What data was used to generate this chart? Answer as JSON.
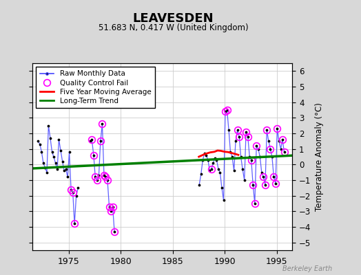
{
  "title": "LEAVESDEN",
  "subtitle": "51.683 N, 0.417 W (United Kingdom)",
  "ylabel": "Temperature Anomaly (°C)",
  "ylim": [
    -5.5,
    6.5
  ],
  "xlim": [
    1971.5,
    1996.5
  ],
  "xticks": [
    1975,
    1980,
    1985,
    1990,
    1995
  ],
  "yticks": [
    -5,
    -4,
    -3,
    -2,
    -1,
    0,
    1,
    2,
    3,
    4,
    5,
    6
  ],
  "background_color": "#d8d8d8",
  "plot_bg_color": "#ffffff",
  "watermark": "Berkeley Earth",
  "segments": [
    {
      "times": [
        1972.04,
        1972.21,
        1972.38,
        1972.54,
        1972.71,
        1972.88,
        1973.04,
        1973.21,
        1973.38,
        1973.54,
        1973.71,
        1973.88,
        1974.04,
        1974.21,
        1974.38,
        1974.54,
        1974.71,
        1974.88,
        1975.04,
        1975.21,
        1975.38,
        1975.54,
        1975.71,
        1975.88
      ],
      "values": [
        1.5,
        1.3,
        0.8,
        0.1,
        -0.2,
        -0.5,
        2.5,
        1.7,
        0.8,
        0.5,
        0.1,
        -0.3,
        1.6,
        0.9,
        0.2,
        -0.4,
        -0.3,
        -0.8,
        0.8,
        -1.6,
        -1.8,
        -3.8,
        -2.0,
        -1.5
      ]
    },
    {
      "times": [
        1977.04,
        1977.21,
        1977.38,
        1977.54,
        1977.71,
        1977.88,
        1978.04,
        1978.21,
        1978.38,
        1978.54,
        1978.71,
        1978.88,
        1979.04,
        1979.21,
        1979.38
      ],
      "values": [
        1.5,
        1.6,
        0.6,
        -0.8,
        -1.0,
        -0.7,
        1.5,
        2.6,
        -0.7,
        -0.8,
        -1.0,
        -2.7,
        -3.0,
        -2.7,
        -4.3
      ]
    },
    {
      "times": [
        1987.54,
        1987.71,
        1987.88,
        1988.04,
        1988.21,
        1988.38,
        1988.54,
        1988.71,
        1988.88,
        1989.04,
        1989.21,
        1989.38,
        1989.54,
        1989.71,
        1989.88,
        1990.04,
        1990.21,
        1990.38,
        1990.54,
        1990.71,
        1990.88,
        1991.04,
        1991.21,
        1991.38,
        1991.54,
        1991.71,
        1991.88,
        1992.04,
        1992.21,
        1992.38,
        1992.54,
        1992.71,
        1992.88,
        1993.04,
        1993.21,
        1993.38,
        1993.54,
        1993.71,
        1993.88,
        1994.04,
        1994.21,
        1994.38,
        1994.54,
        1994.71,
        1994.88,
        1995.04,
        1995.21,
        1995.38,
        1995.54,
        1995.71
      ],
      "values": [
        -1.3,
        -0.6,
        0.3,
        0.7,
        0.6,
        0.3,
        -0.4,
        -0.3,
        0.1,
        0.4,
        0.3,
        -0.3,
        -0.5,
        -1.5,
        -2.3,
        3.4,
        3.5,
        2.2,
        0.8,
        0.5,
        -0.4,
        1.5,
        2.2,
        1.8,
        0.5,
        -0.3,
        -1.0,
        2.1,
        1.8,
        0.5,
        0.3,
        -1.3,
        -2.5,
        1.2,
        1.0,
        0.5,
        -0.5,
        -0.8,
        -1.3,
        2.2,
        1.5,
        1.0,
        0.5,
        -0.8,
        -1.2,
        2.3,
        1.5,
        1.0,
        1.6,
        0.8
      ]
    }
  ],
  "qc_fail_times": [
    1975.21,
    1975.38,
    1975.54,
    1977.21,
    1977.38,
    1977.54,
    1977.71,
    1978.04,
    1978.21,
    1978.38,
    1978.54,
    1978.71,
    1978.88,
    1979.04,
    1979.21,
    1979.38,
    1988.71,
    1990.04,
    1990.21,
    1991.21,
    1991.38,
    1992.04,
    1992.21,
    1992.54,
    1992.71,
    1992.88,
    1993.04,
    1993.71,
    1993.88,
    1994.04,
    1994.38,
    1994.71,
    1994.88,
    1995.04,
    1995.54,
    1995.71
  ],
  "qc_fail_values": [
    -1.6,
    -1.8,
    -3.8,
    1.6,
    0.6,
    -0.8,
    -1.0,
    1.5,
    2.6,
    -0.7,
    -0.8,
    -1.0,
    -2.7,
    -3.0,
    -2.7,
    -4.3,
    -0.3,
    3.4,
    3.5,
    2.2,
    1.8,
    2.1,
    1.8,
    0.3,
    -1.3,
    -2.5,
    1.2,
    -0.8,
    -1.3,
    2.2,
    1.0,
    -0.8,
    -1.2,
    2.3,
    1.6,
    0.8
  ],
  "five_year_avg_times": [
    1987.5,
    1988.0,
    1988.3,
    1988.6,
    1989.0,
    1989.3,
    1989.6,
    1990.0,
    1990.3,
    1990.6,
    1991.0,
    1991.3
  ],
  "five_year_avg_values": [
    0.5,
    0.65,
    0.72,
    0.78,
    0.82,
    0.9,
    0.88,
    0.82,
    0.8,
    0.75,
    0.68,
    0.62
  ],
  "trend_times": [
    1971.5,
    1996.5
  ],
  "trend_values": [
    -0.25,
    0.58
  ]
}
